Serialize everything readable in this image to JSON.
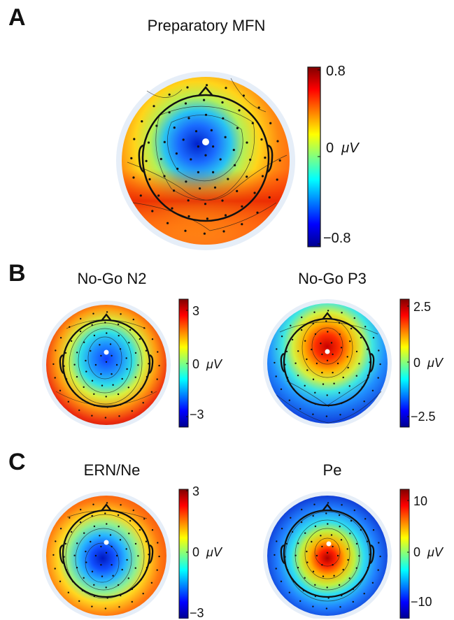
{
  "panels": {
    "a": {
      "letter": "A"
    },
    "b": {
      "letter": "B"
    },
    "c": {
      "letter": "C"
    }
  },
  "maps": [
    {
      "id": "mfn",
      "title": "Preparatory MFN",
      "pattern": "central-neg-mfn",
      "colorbar": {
        "max": "0.8",
        "mid": "0",
        "min": "−0.8",
        "unit": "μV"
      }
    },
    {
      "id": "n2",
      "title": "No-Go N2",
      "pattern": "central-neg",
      "colorbar": {
        "max": "3",
        "mid": "0",
        "min": "−3",
        "unit": "μV"
      }
    },
    {
      "id": "p3",
      "title": "No-Go P3",
      "pattern": "central-pos-frontal",
      "colorbar": {
        "max": "2.5",
        "mid": "0",
        "min": "−2.5",
        "unit": "μV"
      }
    },
    {
      "id": "ern",
      "title": "ERN/Ne",
      "pattern": "central-neg-ern",
      "colorbar": {
        "max": "3",
        "mid": "0",
        "min": "−3",
        "unit": "μV"
      }
    },
    {
      "id": "pe",
      "title": "Pe",
      "pattern": "central-pos",
      "colorbar": {
        "max": "10",
        "mid": "0",
        "min": "−10",
        "unit": "μV"
      }
    }
  ]
}
